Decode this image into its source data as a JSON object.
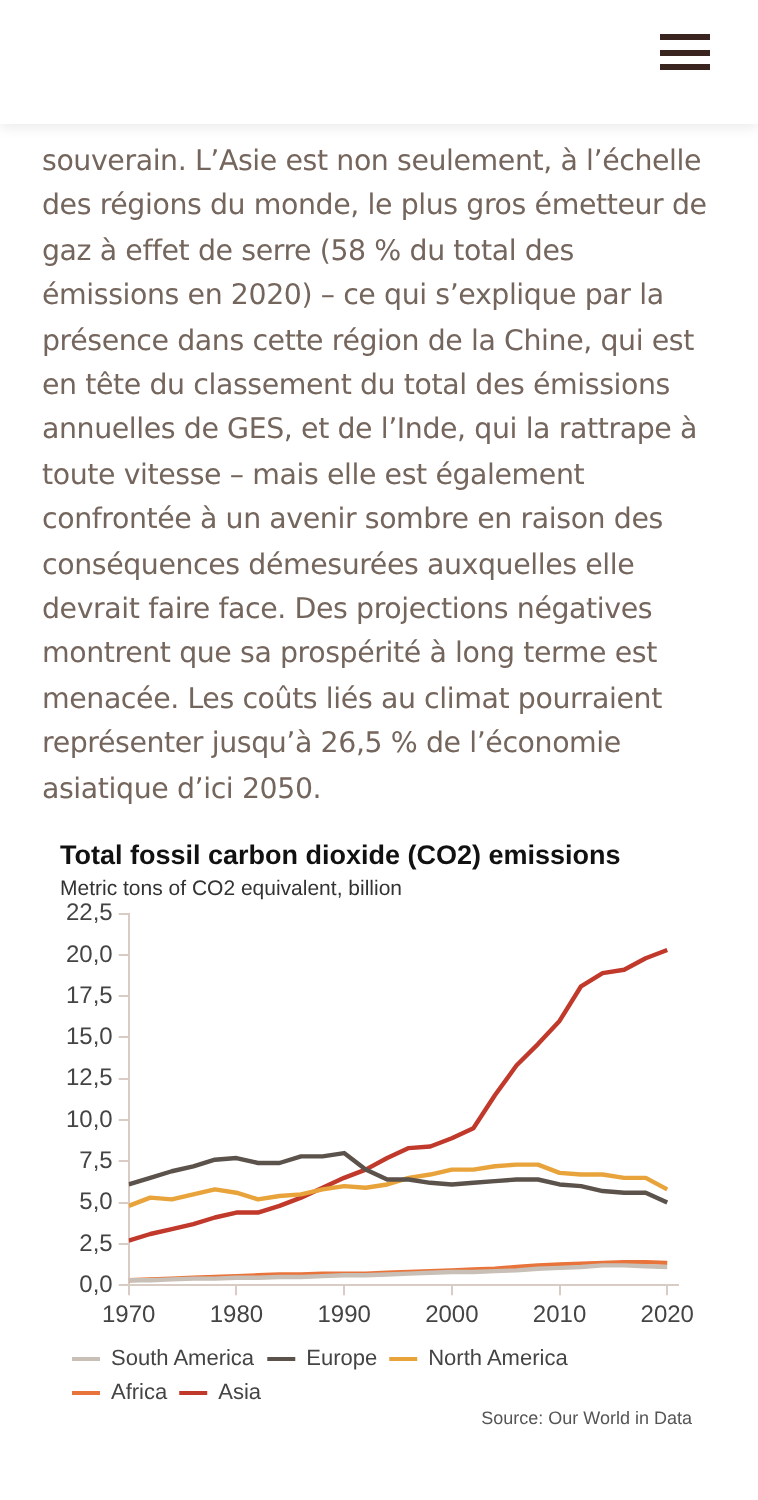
{
  "chart_data": {
    "type": "line",
    "title": "Total fossil carbon dioxide (CO2) emissions",
    "subtitle": "Metric tons of CO2 equivalent, billion",
    "annotations": [
      "souverain. L’Asie est non seulement, à l’échelle des régions du monde, le plus gros émetteur de gaz à effet de serre (58 % du total des émissions en 2020) – ce qui s’explique par la présence dans cette région de la Chine, qui est en tête du classement du total des émissions annuelles de GES, et de l’Inde, qui la rattrape à toute vitesse – mais elle est également confrontée à un avenir sombre en raison des conséquences démesurées auxquelles elle devrait faire face. Des projections négatives montrent que sa prospérité à long terme est menacée. Les coûts liés au climat pourraient représenter jusqu’à 26,5 % de l’économie asiatique d’ici 2050.",
      "Source: Our World in Data"
    ],
    "x": [
      1970,
      1972,
      1974,
      1976,
      1978,
      1980,
      1982,
      1984,
      1986,
      1988,
      1990,
      1992,
      1994,
      1996,
      1998,
      2000,
      2002,
      2004,
      2006,
      2008,
      2010,
      2012,
      2014,
      2016,
      2018,
      2020
    ],
    "series": [
      {
        "name": "South America",
        "color": "#c8bfb6",
        "values": [
          0.3,
          0.3,
          0.35,
          0.4,
          0.4,
          0.45,
          0.45,
          0.5,
          0.5,
          0.55,
          0.6,
          0.6,
          0.65,
          0.7,
          0.75,
          0.8,
          0.8,
          0.85,
          0.9,
          1.0,
          1.05,
          1.1,
          1.2,
          1.2,
          1.15,
          1.1
        ]
      },
      {
        "name": "Europe",
        "color": "#5b524b",
        "values": [
          6.1,
          6.5,
          6.9,
          7.2,
          7.6,
          7.7,
          7.4,
          7.4,
          7.8,
          7.8,
          8.0,
          7.0,
          6.4,
          6.4,
          6.2,
          6.1,
          6.2,
          6.3,
          6.4,
          6.4,
          6.1,
          6.0,
          5.7,
          5.6,
          5.6,
          5.0
        ]
      },
      {
        "name": "North America",
        "color": "#e8a33a",
        "values": [
          4.8,
          5.3,
          5.2,
          5.5,
          5.8,
          5.6,
          5.2,
          5.4,
          5.5,
          5.8,
          6.0,
          5.9,
          6.1,
          6.5,
          6.7,
          7.0,
          7.0,
          7.2,
          7.3,
          7.3,
          6.8,
          6.7,
          6.7,
          6.5,
          6.5,
          5.8
        ]
      },
      {
        "name": "Africa",
        "color": "#e8743b",
        "values": [
          0.3,
          0.35,
          0.4,
          0.45,
          0.5,
          0.55,
          0.6,
          0.65,
          0.65,
          0.7,
          0.7,
          0.7,
          0.75,
          0.8,
          0.85,
          0.9,
          0.95,
          1.0,
          1.1,
          1.2,
          1.25,
          1.3,
          1.35,
          1.4,
          1.4,
          1.35
        ]
      },
      {
        "name": "Asia",
        "color": "#c0392b",
        "values": [
          2.7,
          3.1,
          3.4,
          3.7,
          4.1,
          4.4,
          4.4,
          4.8,
          5.3,
          5.9,
          6.5,
          7.0,
          7.7,
          8.3,
          8.4,
          8.9,
          9.5,
          11.5,
          13.3,
          14.6,
          16.0,
          18.1,
          18.9,
          19.1,
          19.8,
          20.3
        ]
      }
    ],
    "xlim": [
      1970,
      2021
    ],
    "xticks": [
      1970,
      1980,
      1990,
      2000,
      2010,
      2020
    ],
    "ylim": [
      0,
      22.5
    ],
    "yticks": [
      {
        "value": 0,
        "label": "0,0"
      },
      {
        "value": 2.5,
        "label": "2,5"
      },
      {
        "value": 5,
        "label": "5,0"
      },
      {
        "value": 7.5,
        "label": "7,5"
      },
      {
        "value": 10,
        "label": "10,0"
      },
      {
        "value": 12.5,
        "label": "12,5"
      },
      {
        "value": 15,
        "label": "15,0"
      },
      {
        "value": 17.5,
        "label": "17,5"
      },
      {
        "value": 20,
        "label": "20,0"
      },
      {
        "value": 22.5,
        "label": "22,5"
      }
    ],
    "grid": false,
    "legend": "bottom",
    "marker": "none",
    "line_style": "solid"
  }
}
